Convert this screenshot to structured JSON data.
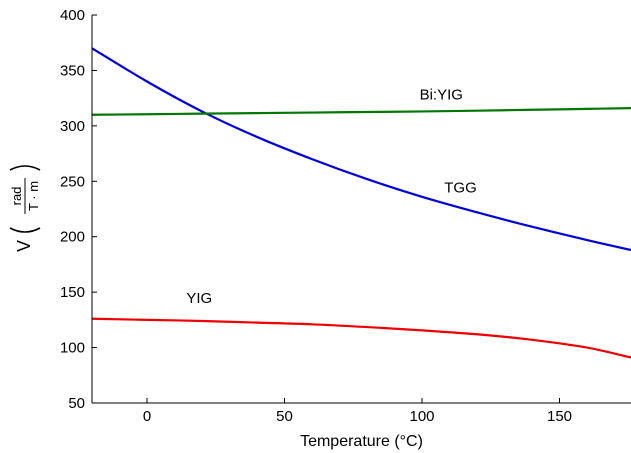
{
  "chart_data": {
    "type": "line",
    "xlabel": "Temperature (°C)",
    "ylabel": {
      "prefix": "V",
      "numerator": "rad",
      "denominator": "T · m"
    },
    "xlim": [
      -20,
      176
    ],
    "ylim": [
      50,
      400
    ],
    "xticks": [
      0,
      50,
      100,
      150
    ],
    "yticks": [
      50,
      100,
      150,
      200,
      250,
      300,
      350,
      400
    ],
    "grid": false,
    "series": [
      {
        "name": "TGG",
        "color": "#0000dd",
        "x": [
          -20,
          0,
          20,
          40,
          60,
          80,
          100,
          120,
          140,
          160,
          176
        ],
        "y": [
          370,
          340,
          313,
          290,
          270,
          252,
          236,
          222,
          209,
          197,
          188
        ]
      },
      {
        "name": "Bi:YIG",
        "color": "#007700",
        "x": [
          -20,
          0,
          20,
          40,
          60,
          80,
          100,
          120,
          140,
          160,
          176
        ],
        "y": [
          310,
          310.5,
          311,
          311.5,
          312,
          312.5,
          313,
          313.7,
          314.5,
          315.3,
          316
        ]
      },
      {
        "name": "YIG",
        "color": "#ee0000",
        "x": [
          -20,
          0,
          20,
          40,
          60,
          80,
          100,
          120,
          140,
          160,
          176
        ],
        "y": [
          126,
          125,
          124,
          122.5,
          121,
          118.5,
          115.5,
          112,
          107,
          100,
          91
        ]
      }
    ],
    "annotations": [
      {
        "text": "Bi:YIG",
        "x": 107,
        "y": 324
      },
      {
        "text": "TGG",
        "x": 114,
        "y": 240
      },
      {
        "text": "YIG",
        "x": 19,
        "y": 140
      }
    ]
  }
}
